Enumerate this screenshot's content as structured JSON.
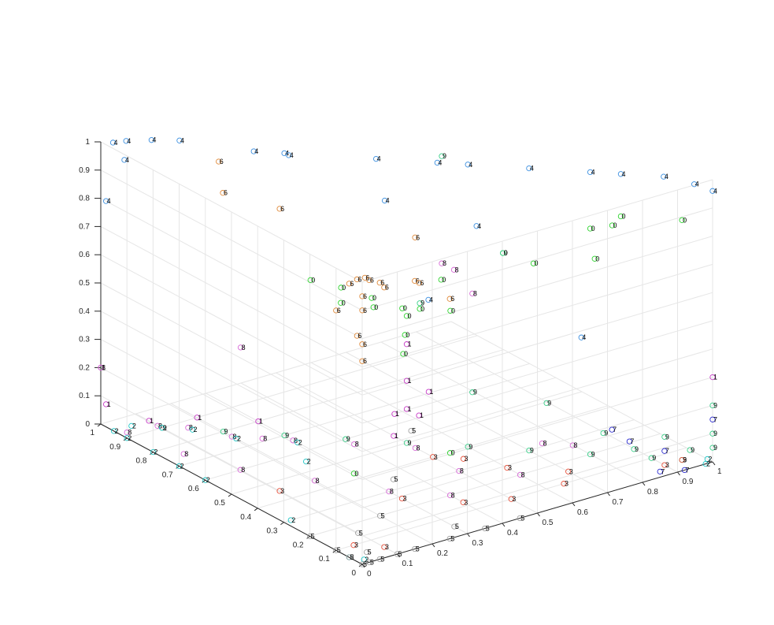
{
  "chart_data": {
    "type": "scatter",
    "projection": "3d",
    "title": "",
    "xlabel": "",
    "ylabel": "",
    "zlabel": "",
    "xlim": [
      0,
      1
    ],
    "ylim": [
      0,
      1
    ],
    "zlim": [
      0,
      1
    ],
    "grid": true,
    "marker": "o",
    "x_ticks": [
      "0",
      "0.1",
      "0.2",
      "0.3",
      "0.4",
      "0.5",
      "0.6",
      "0.7",
      "0.8",
      "0.9",
      "1"
    ],
    "y_ticks": [
      "0",
      "0.1",
      "0.2",
      "0.3",
      "0.4",
      "0.5",
      "0.6",
      "0.7",
      "0.8",
      "0.9",
      "1"
    ],
    "z_ticks": [
      "0",
      "0.1",
      "0.2",
      "0.3",
      "0.4",
      "0.5",
      "0.6",
      "0.7",
      "0.8",
      "0.9",
      "1"
    ],
    "class_colors": {
      "0": "#2fd32f",
      "1": "#c83cc8",
      "2": "#20c8c8",
      "3": "#e8503a",
      "4": "#3b8fe0",
      "5": "#a0a0a0",
      "6": "#e08a3a",
      "7": "#2a2ad0",
      "8": "#d86ad8",
      "9": "#3ad08a"
    },
    "points": [
      {
        "label": "4",
        "x": 0.02,
        "y": 0.98,
        "z": 1.0
      },
      {
        "label": "4",
        "x": 0.05,
        "y": 0.97,
        "z": 1.0
      },
      {
        "label": "4",
        "x": 0.1,
        "y": 0.94,
        "z": 1.0
      },
      {
        "label": "4",
        "x": 0.15,
        "y": 0.9,
        "z": 1.0
      },
      {
        "label": "4",
        "x": 0.25,
        "y": 0.75,
        "z": 1.0
      },
      {
        "label": "4",
        "x": 0.3,
        "y": 0.7,
        "z": 1.0
      },
      {
        "label": "4",
        "x": 0.45,
        "y": 0.55,
        "z": 1.0
      },
      {
        "label": "4",
        "x": 0.55,
        "y": 0.45,
        "z": 1.0
      },
      {
        "label": "4",
        "x": 0.7,
        "y": 0.3,
        "z": 1.0
      },
      {
        "label": "4",
        "x": 0.85,
        "y": 0.15,
        "z": 1.0
      },
      {
        "label": "4",
        "x": 0.92,
        "y": 0.08,
        "z": 1.0
      },
      {
        "label": "4",
        "x": 0.97,
        "y": 0.03,
        "z": 0.98
      },
      {
        "label": "4",
        "x": 1.0,
        "y": 0.0,
        "z": 0.96
      },
      {
        "label": "4",
        "x": 0.03,
        "y": 0.95,
        "z": 0.95
      },
      {
        "label": "4",
        "x": 0.0,
        "y": 0.98,
        "z": 0.8
      },
      {
        "label": "4",
        "x": 0.4,
        "y": 0.45,
        "z": 0.92
      },
      {
        "label": "4",
        "x": 0.55,
        "y": 0.3,
        "z": 0.85
      },
      {
        "label": "4",
        "x": 0.45,
        "y": 0.35,
        "z": 0.6
      },
      {
        "label": "4",
        "x": 0.7,
        "y": 0.1,
        "z": 0.5
      },
      {
        "label": "4",
        "x": 0.35,
        "y": 0.75,
        "z": 0.95
      },
      {
        "label": "4",
        "x": 0.6,
        "y": 0.4,
        "z": 1.0
      },
      {
        "label": "4",
        "x": 0.8,
        "y": 0.2,
        "z": 1.0
      },
      {
        "label": "6",
        "x": 0.0,
        "y": 0.02,
        "z": 1.0
      },
      {
        "label": "6",
        "x": 0.02,
        "y": 0.0,
        "z": 1.0
      },
      {
        "label": "6",
        "x": 0.05,
        "y": 0.0,
        "z": 0.98
      },
      {
        "label": "6",
        "x": 0.0,
        "y": 0.05,
        "z": 0.97
      },
      {
        "label": "6",
        "x": 0.03,
        "y": 0.03,
        "z": 0.99
      },
      {
        "label": "6",
        "x": 0.0,
        "y": 0.0,
        "z": 0.95
      },
      {
        "label": "6",
        "x": 0.0,
        "y": 0.0,
        "z": 0.9
      },
      {
        "label": "6",
        "x": 0.1,
        "y": 0.05,
        "z": 0.92
      },
      {
        "label": "6",
        "x": 0.15,
        "y": 0.0,
        "z": 0.95
      },
      {
        "label": "6",
        "x": 0.0,
        "y": 0.1,
        "z": 0.85
      },
      {
        "label": "6",
        "x": 0.0,
        "y": 0.02,
        "z": 0.8
      },
      {
        "label": "6",
        "x": 0.0,
        "y": 0.0,
        "z": 0.78
      },
      {
        "label": "6",
        "x": 0.0,
        "y": 0.0,
        "z": 0.72
      },
      {
        "label": "6",
        "x": 0.2,
        "y": 0.05,
        "z": 0.9
      },
      {
        "label": "6",
        "x": 0.25,
        "y": 0.0,
        "z": 0.85
      },
      {
        "label": "6",
        "x": 0.3,
        "y": 0.2,
        "z": 0.95
      },
      {
        "label": "6",
        "x": 0.1,
        "y": 0.45,
        "z": 1.0
      },
      {
        "label": "6",
        "x": 0.05,
        "y": 0.6,
        "z": 1.0
      },
      {
        "label": "6",
        "x": 0.15,
        "y": 0.75,
        "z": 1.0
      },
      {
        "label": "0",
        "x": 0.45,
        "y": 0.45,
        "z": 0.52
      },
      {
        "label": "0",
        "x": 0.4,
        "y": 0.5,
        "z": 0.55
      },
      {
        "label": "0",
        "x": 0.35,
        "y": 0.55,
        "z": 0.58
      },
      {
        "label": "0",
        "x": 0.3,
        "y": 0.6,
        "z": 0.6
      },
      {
        "label": "0",
        "x": 0.5,
        "y": 0.5,
        "z": 0.45
      },
      {
        "label": "0",
        "x": 0.48,
        "y": 0.48,
        "z": 0.4
      },
      {
        "label": "0",
        "x": 0.46,
        "y": 0.46,
        "z": 0.35
      },
      {
        "label": "0",
        "x": 0.5,
        "y": 0.45,
        "z": 0.5
      },
      {
        "label": "0",
        "x": 0.55,
        "y": 0.4,
        "z": 0.5
      },
      {
        "label": "0",
        "x": 0.42,
        "y": 0.52,
        "z": 0.5
      },
      {
        "label": "0",
        "x": 0.2,
        "y": 0.35,
        "z": 0.68
      },
      {
        "label": "0",
        "x": 0.3,
        "y": 0.1,
        "z": 0.85
      },
      {
        "label": "0",
        "x": 0.7,
        "y": 0.4,
        "z": 0.65
      },
      {
        "label": "0",
        "x": 0.75,
        "y": 0.35,
        "z": 0.62
      },
      {
        "label": "0",
        "x": 0.8,
        "y": 0.2,
        "z": 0.8
      },
      {
        "label": "0",
        "x": 0.85,
        "y": 0.15,
        "z": 0.85
      },
      {
        "label": "0",
        "x": 0.9,
        "y": 0.25,
        "z": 0.75
      },
      {
        "label": "0",
        "x": 0.85,
        "y": 0.25,
        "z": 0.65
      },
      {
        "label": "0",
        "x": 0.95,
        "y": 0.05,
        "z": 0.85
      },
      {
        "label": "0",
        "x": 0.4,
        "y": 0.2,
        "z": 0.15
      },
      {
        "label": "0",
        "x": 0.2,
        "y": 0.3,
        "z": 0.1
      },
      {
        "label": "9",
        "x": 0.6,
        "y": 0.5,
        "z": 0.98
      },
      {
        "label": "9",
        "x": 0.7,
        "y": 0.4,
        "z": 0.65
      },
      {
        "label": "9",
        "x": 0.65,
        "y": 0.45,
        "z": 0.15
      },
      {
        "label": "9",
        "x": 0.75,
        "y": 0.3,
        "z": 0.15
      },
      {
        "label": "9",
        "x": 0.8,
        "y": 0.15,
        "z": 0.1
      },
      {
        "label": "9",
        "x": 0.85,
        "y": 0.1,
        "z": 0.05
      },
      {
        "label": "9",
        "x": 0.9,
        "y": 0.05,
        "z": 0.1
      },
      {
        "label": "9",
        "x": 0.95,
        "y": 0.02,
        "z": 0.05
      },
      {
        "label": "9",
        "x": 1.0,
        "y": 0.0,
        "z": 0.2
      },
      {
        "label": "9",
        "x": 1.0,
        "y": 0.0,
        "z": 0.1
      },
      {
        "label": "9",
        "x": 1.0,
        "y": 0.0,
        "z": 0.05
      },
      {
        "label": "9",
        "x": 0.95,
        "y": 0.05,
        "z": 0.0
      },
      {
        "label": "9",
        "x": 0.9,
        "y": 0.1,
        "z": 0.0
      },
      {
        "label": "9",
        "x": 0.8,
        "y": 0.2,
        "z": 0.0
      },
      {
        "label": "9",
        "x": 0.7,
        "y": 0.3,
        "z": 0.0
      },
      {
        "label": "9",
        "x": 0.6,
        "y": 0.4,
        "z": 0.0
      },
      {
        "label": "9",
        "x": 0.5,
        "y": 0.5,
        "z": 0.0
      },
      {
        "label": "9",
        "x": 0.4,
        "y": 0.6,
        "z": 0.0
      },
      {
        "label": "9",
        "x": 0.3,
        "y": 0.7,
        "z": 0.0
      },
      {
        "label": "9",
        "x": 0.2,
        "y": 0.8,
        "z": 0.0
      },
      {
        "label": "9",
        "x": 0.1,
        "y": 0.9,
        "z": 0.0
      },
      {
        "label": "9",
        "x": 0.5,
        "y": 0.45,
        "z": 0.52
      },
      {
        "label": "1",
        "x": 0.5,
        "y": 0.5,
        "z": 0.35
      },
      {
        "label": "1",
        "x": 0.5,
        "y": 0.5,
        "z": 0.22
      },
      {
        "label": "1",
        "x": 0.5,
        "y": 0.5,
        "z": 0.12
      },
      {
        "label": "1",
        "x": 0.48,
        "y": 0.52,
        "z": 0.1
      },
      {
        "label": "1",
        "x": 0.52,
        "y": 0.48,
        "z": 0.1
      },
      {
        "label": "1",
        "x": 0.6,
        "y": 0.55,
        "z": 0.12
      },
      {
        "label": "1",
        "x": 0.5,
        "y": 0.55,
        "z": 0.0
      },
      {
        "label": "1",
        "x": 0.3,
        "y": 0.8,
        "z": 0.0
      },
      {
        "label": "1",
        "x": 0.2,
        "y": 0.9,
        "z": 0.0
      },
      {
        "label": "1",
        "x": 0.1,
        "y": 0.95,
        "z": 0.0
      },
      {
        "label": "1",
        "x": 0.0,
        "y": 0.98,
        "z": 0.08
      },
      {
        "label": "1",
        "x": 0.0,
        "y": 1.0,
        "z": 0.2
      },
      {
        "label": "1",
        "x": 1.0,
        "y": 0.0,
        "z": 0.3
      },
      {
        "label": "8",
        "x": 0.05,
        "y": 0.85,
        "z": 0.05
      },
      {
        "label": "8",
        "x": 0.1,
        "y": 0.8,
        "z": 0.05
      },
      {
        "label": "8",
        "x": 0.15,
        "y": 0.7,
        "z": 0.05
      },
      {
        "label": "8",
        "x": 0.2,
        "y": 0.65,
        "z": 0.05
      },
      {
        "label": "8",
        "x": 0.25,
        "y": 0.6,
        "z": 0.05
      },
      {
        "label": "8",
        "x": 0.35,
        "y": 0.5,
        "z": 0.05
      },
      {
        "label": "8",
        "x": 0.45,
        "y": 0.4,
        "z": 0.05
      },
      {
        "label": "8",
        "x": 0.5,
        "y": 0.3,
        "z": 0.0
      },
      {
        "label": "8",
        "x": 0.6,
        "y": 0.2,
        "z": 0.0
      },
      {
        "label": "8",
        "x": 0.4,
        "y": 0.2,
        "z": 0.0
      },
      {
        "label": "8",
        "x": 0.3,
        "y": 0.3,
        "z": 0.0
      },
      {
        "label": "8",
        "x": 0.2,
        "y": 0.45,
        "z": 0.0
      },
      {
        "label": "8",
        "x": 0.1,
        "y": 0.6,
        "z": 0.0
      },
      {
        "label": "8",
        "x": 0.05,
        "y": 0.75,
        "z": 0.0
      },
      {
        "label": "8",
        "x": 0.0,
        "y": 0.9,
        "z": 0.02
      },
      {
        "label": "8",
        "x": 0.25,
        "y": 0.8,
        "z": 0.28
      },
      {
        "label": "8",
        "x": 0.6,
        "y": 0.5,
        "z": 0.6
      },
      {
        "label": "8",
        "x": 0.62,
        "y": 0.48,
        "z": 0.58
      },
      {
        "label": "8",
        "x": 0.65,
        "y": 0.45,
        "z": 0.5
      },
      {
        "label": "8",
        "x": 0.0,
        "y": 1.0,
        "z": 0.2
      },
      {
        "label": "8",
        "x": 0.75,
        "y": 0.2,
        "z": 0.05
      },
      {
        "label": "8",
        "x": 0.7,
        "y": 0.25,
        "z": 0.05
      },
      {
        "label": "2",
        "x": 0.0,
        "y": 0.95,
        "z": 0.0
      },
      {
        "label": "2",
        "x": 0.0,
        "y": 0.9,
        "z": 0.0
      },
      {
        "label": "2",
        "x": 0.0,
        "y": 0.8,
        "z": 0.0
      },
      {
        "label": "2",
        "x": 0.0,
        "y": 0.7,
        "z": 0.0
      },
      {
        "label": "2",
        "x": 0.0,
        "y": 0.6,
        "z": 0.0
      },
      {
        "label": "2",
        "x": 0.05,
        "y": 0.95,
        "z": 0.0
      },
      {
        "label": "2",
        "x": 0.1,
        "y": 0.9,
        "z": 0.0
      },
      {
        "label": "2",
        "x": 0.15,
        "y": 0.85,
        "z": 0.0
      },
      {
        "label": "2",
        "x": 0.2,
        "y": 0.75,
        "z": 0.0
      },
      {
        "label": "2",
        "x": 0.3,
        "y": 0.65,
        "z": 0.0
      },
      {
        "label": "2",
        "x": 0.25,
        "y": 0.55,
        "z": 0.0
      },
      {
        "label": "2",
        "x": 0.02,
        "y": 0.3,
        "z": 0.0
      },
      {
        "label": "2",
        "x": 0.0,
        "y": 0.05,
        "z": 0.0
      },
      {
        "label": "2",
        "x": 0.02,
        "y": 0.02,
        "z": 0.0
      },
      {
        "label": "2",
        "x": 1.0,
        "y": 0.02,
        "z": 0.0
      },
      {
        "label": "2",
        "x": 0.98,
        "y": 0.0,
        "z": 0.0
      },
      {
        "label": "3",
        "x": 0.5,
        "y": 0.4,
        "z": 0.0
      },
      {
        "label": "3",
        "x": 0.55,
        "y": 0.35,
        "z": 0.0
      },
      {
        "label": "3",
        "x": 0.6,
        "y": 0.25,
        "z": 0.0
      },
      {
        "label": "3",
        "x": 0.7,
        "y": 0.15,
        "z": 0.0
      },
      {
        "label": "3",
        "x": 0.65,
        "y": 0.1,
        "z": 0.0
      },
      {
        "label": "3",
        "x": 0.4,
        "y": 0.15,
        "z": 0.0
      },
      {
        "label": "3",
        "x": 0.3,
        "y": 0.25,
        "z": 0.0
      },
      {
        "label": "3",
        "x": 0.1,
        "y": 0.45,
        "z": 0.0
      },
      {
        "label": "3",
        "x": 0.05,
        "y": 0.1,
        "z": 0.0
      },
      {
        "label": "3",
        "x": 0.1,
        "y": 0.05,
        "z": 0.0
      },
      {
        "label": "3",
        "x": 0.5,
        "y": 0.1,
        "z": 0.0
      },
      {
        "label": "3",
        "x": 0.9,
        "y": 0.05,
        "z": 0.0
      },
      {
        "label": "3",
        "x": 0.95,
        "y": 0.05,
        "z": 0.0
      },
      {
        "label": "5",
        "x": 0.0,
        "y": 0.0,
        "z": 0.0
      },
      {
        "label": "5",
        "x": 0.02,
        "y": 0.0,
        "z": 0.0
      },
      {
        "label": "5",
        "x": 0.05,
        "y": 0.0,
        "z": 0.0
      },
      {
        "label": "5",
        "x": 0.1,
        "y": 0.0,
        "z": 0.0
      },
      {
        "label": "5",
        "x": 0.15,
        "y": 0.0,
        "z": 0.0
      },
      {
        "label": "5",
        "x": 0.25,
        "y": 0.0,
        "z": 0.0
      },
      {
        "label": "5",
        "x": 0.35,
        "y": 0.0,
        "z": 0.0
      },
      {
        "label": "5",
        "x": 0.45,
        "y": 0.0,
        "z": 0.0
      },
      {
        "label": "5",
        "x": 0.0,
        "y": 0.05,
        "z": 0.0
      },
      {
        "label": "5",
        "x": 0.0,
        "y": 0.1,
        "z": 0.0
      },
      {
        "label": "5",
        "x": 0.0,
        "y": 0.2,
        "z": 0.0
      },
      {
        "label": "5",
        "x": 0.05,
        "y": 0.05,
        "z": 0.0
      },
      {
        "label": "5",
        "x": 0.2,
        "y": 0.2,
        "z": 0.0
      },
      {
        "label": "5",
        "x": 0.35,
        "y": 0.35,
        "z": 0.0
      },
      {
        "label": "5",
        "x": 0.55,
        "y": 0.55,
        "z": 0.0
      },
      {
        "label": "5",
        "x": 0.1,
        "y": 0.15,
        "z": 0.0
      },
      {
        "label": "5",
        "x": 0.3,
        "y": 0.05,
        "z": 0.0
      },
      {
        "label": "7",
        "x": 0.75,
        "y": 0.05,
        "z": 0.18
      },
      {
        "label": "7",
        "x": 0.8,
        "y": 0.05,
        "z": 0.12
      },
      {
        "label": "7",
        "x": 0.9,
        "y": 0.05,
        "z": 0.05
      },
      {
        "label": "7",
        "x": 1.0,
        "y": 0.0,
        "z": 0.15
      },
      {
        "label": "7",
        "x": 0.92,
        "y": 0.0,
        "z": 0.0
      },
      {
        "label": "7",
        "x": 0.85,
        "y": 0.0,
        "z": 0.02
      }
    ]
  }
}
